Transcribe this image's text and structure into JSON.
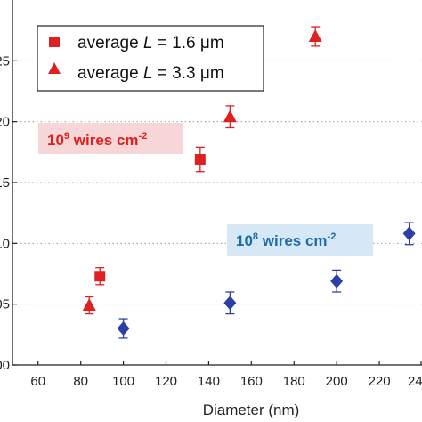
{
  "chart_data": {
    "type": "scatter",
    "xlabel": "Diameter (nm)",
    "ylabel": "",
    "xlim": [
      48,
      240
    ],
    "ylim": [
      0.0,
      3.0
    ],
    "x_ticks": [
      60,
      80,
      100,
      120,
      140,
      160,
      180,
      200,
      220
    ],
    "x_tick_labels": [
      "60",
      "80",
      "100",
      "120",
      "140",
      "160",
      "180",
      "200",
      "220"
    ],
    "x_tick_last_partial": "24",
    "y_ticks": [
      0.0,
      0.5,
      1.0,
      1.5,
      2.0,
      2.5
    ],
    "y_tick_labels": [
      "00",
      "05",
      "10",
      "15",
      "20",
      "25"
    ],
    "grid": "horizontal dotted",
    "legend_position": "top-left",
    "series": [
      {
        "name": "average L = 1.6 μm",
        "legend_prefix": "average",
        "legend_var": "L",
        "legend_suffix": " = 1.6 μm",
        "marker": "square",
        "color": "#e02020",
        "points": [
          {
            "x": 89,
            "y": 0.73,
            "err": 0.07
          },
          {
            "x": 136,
            "y": 1.69,
            "err": 0.1
          }
        ]
      },
      {
        "name": "average L = 3.3 μm",
        "legend_prefix": "average",
        "legend_var": "L",
        "legend_suffix": " = 3.3 μm",
        "marker": "triangle",
        "color": "#e02020",
        "points": [
          {
            "x": 84,
            "y": 0.49,
            "err": 0.07
          },
          {
            "x": 150,
            "y": 2.04,
            "err": 0.09
          },
          {
            "x": 190,
            "y": 2.7,
            "err": 0.08
          }
        ]
      },
      {
        "marker": "diamond",
        "color": "#2b3fa6",
        "points": [
          {
            "x": 100,
            "y": 0.3,
            "err": 0.08
          },
          {
            "x": 150,
            "y": 0.51,
            "err": 0.09
          },
          {
            "x": 200,
            "y": 0.69,
            "err": 0.09
          },
          {
            "x": 234,
            "y": 1.08,
            "err": 0.09
          }
        ]
      }
    ],
    "annotations": [
      {
        "base": "10",
        "exp": "9",
        "text": " wires cm",
        "exp2": "-2",
        "color": "#e02020",
        "bg": "#f6d6d6"
      },
      {
        "base": "10",
        "exp": "8",
        "text": " wires cm",
        "exp2": "-2",
        "color": "#1f6aa8",
        "bg": "#d6e8f6"
      }
    ]
  }
}
